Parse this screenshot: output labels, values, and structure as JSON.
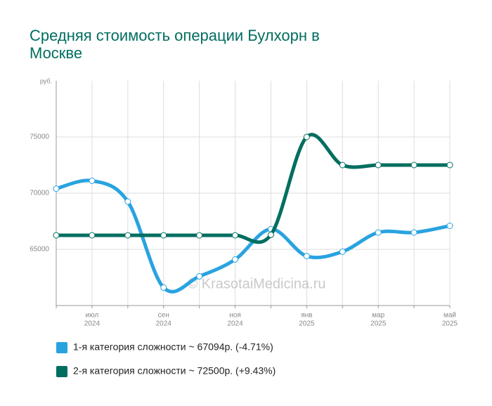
{
  "chart_data": {
    "type": "line",
    "title_lines": [
      "Средняя стоимость операции Булхорн в",
      "Москве"
    ],
    "y_unit": "руб.",
    "watermark": "© KrasotaiMedicina.ru",
    "categories": [
      null,
      [
        "июл",
        "2024"
      ],
      null,
      [
        "сен",
        "2024"
      ],
      null,
      [
        "ноя",
        "2024"
      ],
      null,
      [
        "янв",
        "2025"
      ],
      null,
      [
        "мар",
        "2025"
      ],
      null,
      [
        "май",
        "2025"
      ]
    ],
    "ylim": [
      60000,
      80000
    ],
    "yticks": [
      65000,
      70000,
      75000
    ],
    "grid": true,
    "series": [
      {
        "name": "1-я категория сложности ~ 67094р. (-4.71%)",
        "color": "#29a3e0",
        "values": [
          70400,
          71100,
          69250,
          61600,
          62600,
          64100,
          66800,
          64400,
          64800,
          66500,
          66500,
          67094
        ]
      },
      {
        "name": "2-я категория сложности ~ 72500р. (+9.43%)",
        "color": "#006e5f",
        "values": [
          66250,
          66250,
          66250,
          66250,
          66250,
          66250,
          66300,
          75000,
          72500,
          72500,
          72500,
          72500
        ]
      }
    ]
  }
}
